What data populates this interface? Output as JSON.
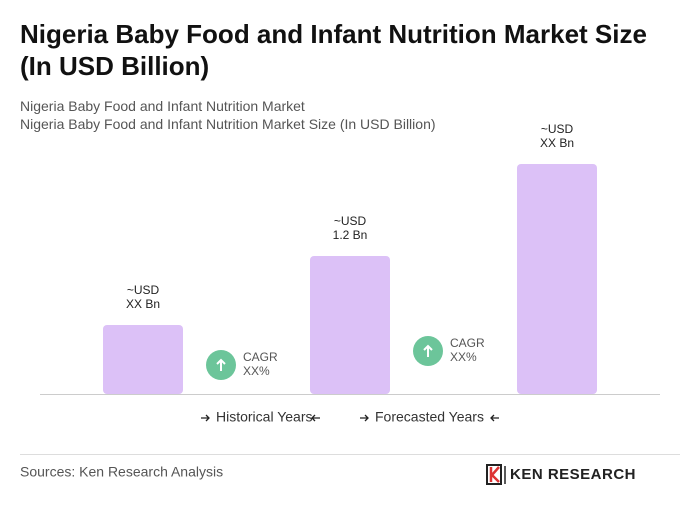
{
  "chart_data": {
    "type": "bar",
    "title": "Nigeria Baby Food and Infant Nutrition Market Size (In USD Billion)",
    "subtitle": [
      "Nigeria Baby Food and Infant Nutrition Market",
      "Nigeria Baby Food and Infant Nutrition Market Size (In USD Billion)"
    ],
    "categories": [
      null,
      null,
      null
    ],
    "values": [
      0.6,
      1.2,
      2.0
    ],
    "value_labels": [
      "~USD XX Bn",
      "~USD 1.2 Bn",
      "~USD XX Bn"
    ],
    "color": "#dcc1f7",
    "ylim": [
      0,
      2.0
    ],
    "annotations": [
      {
        "line1": "CAGR",
        "line2": "XX%"
      },
      {
        "line1": "CAGR",
        "line2": "XX%"
      }
    ],
    "annotation_color": "#6cc59a",
    "legend": [
      "Historical Years",
      "Forecasted Years"
    ],
    "source": "Sources: Ken Research Analysis",
    "logo": "KEN RESEARCH"
  }
}
